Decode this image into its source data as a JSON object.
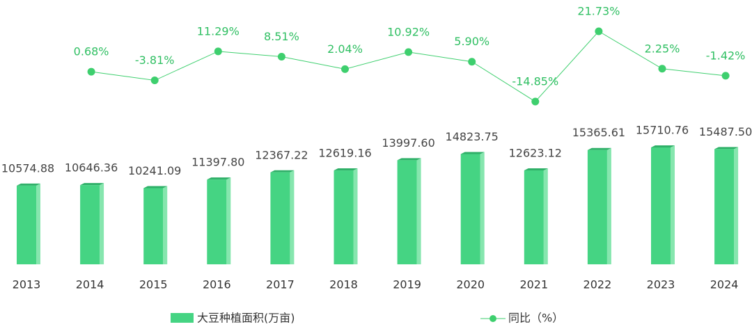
{
  "chart_data": {
    "type": "bar",
    "categories": [
      "2013",
      "2014",
      "2015",
      "2016",
      "2017",
      "2018",
      "2019",
      "2020",
      "2021",
      "2022",
      "2023",
      "2024"
    ],
    "series": [
      {
        "name": "大豆种植面积(万亩)",
        "color": "#45d483",
        "type": "bar",
        "values": [
          10574.88,
          10646.36,
          10241.09,
          11397.8,
          12367.22,
          12619.16,
          13997.6,
          14823.75,
          12623.12,
          15365.61,
          15710.76,
          15487.5
        ],
        "value_labels": [
          "10574.88",
          "10646.36",
          "10241.09",
          "11397.80",
          "12367.22",
          "12619.16",
          "13997.60",
          "14823.75",
          "12623.12",
          "15365.61",
          "15710.76",
          "15487.50"
        ]
      },
      {
        "name": "同比（%）",
        "color": "#3ecf6e",
        "type": "line",
        "values": [
          null,
          0.68,
          -3.81,
          11.29,
          8.51,
          2.04,
          10.92,
          5.9,
          -14.85,
          21.73,
          2.25,
          -1.42
        ],
        "value_labels": [
          null,
          "0.68%",
          "-3.81%",
          "11.29%",
          "8.51%",
          "2.04%",
          "10.92%",
          "5.90%",
          "-14.85%",
          "21.73%",
          "2.25%",
          "-1.42%"
        ]
      }
    ]
  }
}
